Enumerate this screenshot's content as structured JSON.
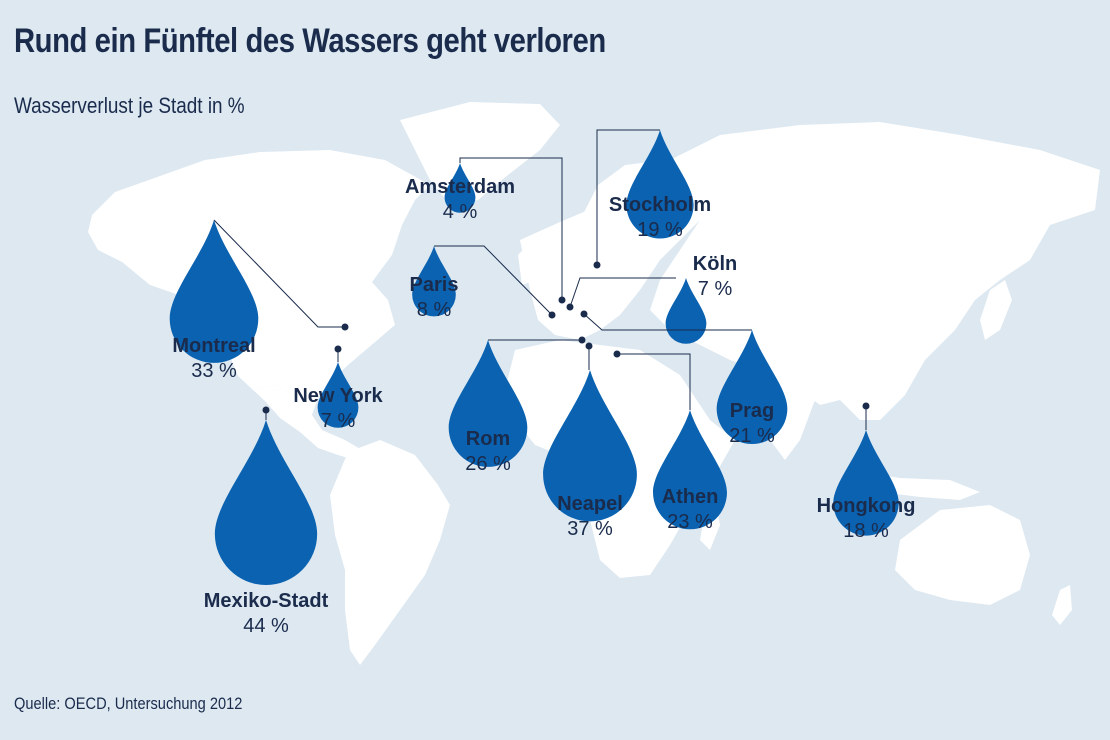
{
  "header": {
    "title": "Rund ein Fünftel des Wassers geht verloren",
    "subtitle": "Wasserverlust je Stadt in %"
  },
  "footer": {
    "source": "Quelle: OECD, Untersuchung 2012"
  },
  "colors": {
    "background": "#dde8f1",
    "land": "#ffffff",
    "drop": "#0a62b0",
    "text": "#1a2b4c"
  },
  "chart_data": {
    "type": "map-bubble",
    "title": "Rund ein Fünftel des Wassers geht verloren",
    "subtitle": "Wasserverlust je Stadt in %",
    "unit": "%",
    "symbol": "water-drop",
    "cities": [
      {
        "name": "Montreal",
        "value": 33,
        "label": "33 %"
      },
      {
        "name": "New York",
        "value": 7,
        "label": "7 %"
      },
      {
        "name": "Mexiko-Stadt",
        "value": 44,
        "label": "44 %"
      },
      {
        "name": "Amsterdam",
        "value": 4,
        "label": "4 %"
      },
      {
        "name": "Paris",
        "value": 8,
        "label": "8 %"
      },
      {
        "name": "Stockholm",
        "value": 19,
        "label": "19 %"
      },
      {
        "name": "Köln",
        "value": 7,
        "label": "7 %"
      },
      {
        "name": "Rom",
        "value": 26,
        "label": "26 %"
      },
      {
        "name": "Neapel",
        "value": 37,
        "label": "37 %"
      },
      {
        "name": "Athen",
        "value": 23,
        "label": "23 %"
      },
      {
        "name": "Prag",
        "value": 21,
        "label": "21 %"
      },
      {
        "name": "Hongkong",
        "value": 18,
        "label": "18 %"
      }
    ]
  }
}
